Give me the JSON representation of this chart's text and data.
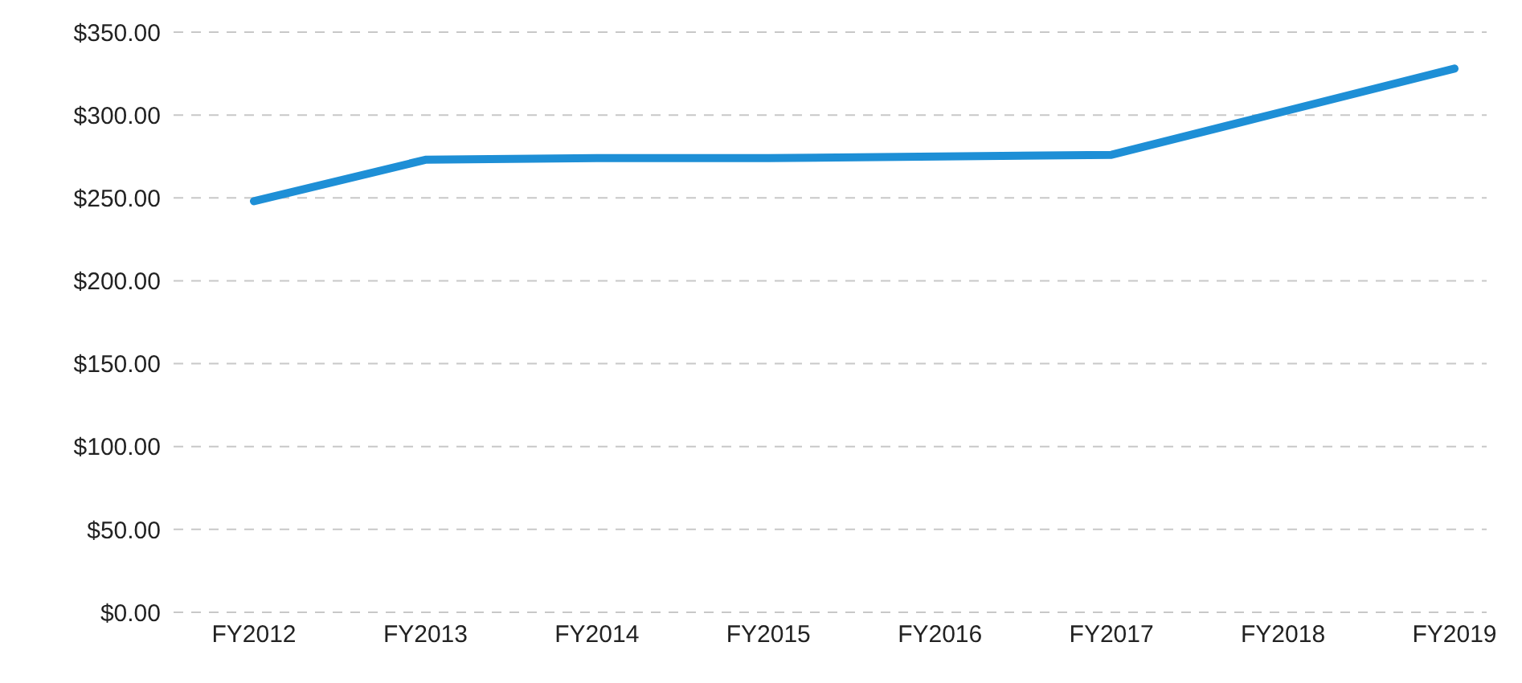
{
  "chart_data": {
    "type": "line",
    "categories": [
      "FY2012",
      "FY2013",
      "FY2014",
      "FY2015",
      "FY2016",
      "FY2017",
      "FY2018",
      "FY2019"
    ],
    "series": [
      {
        "color": "#1e8fd6",
        "values": [
          248,
          273,
          274,
          274,
          275,
          276,
          302,
          328
        ]
      }
    ],
    "ylim": [
      0,
      350
    ],
    "yticks": [
      {
        "value": 0,
        "label": "$0.00"
      },
      {
        "value": 50,
        "label": "$50.00"
      },
      {
        "value": 100,
        "label": "$100.00"
      },
      {
        "value": 150,
        "label": "$150.00"
      },
      {
        "value": 200,
        "label": "$200.00"
      },
      {
        "value": 250,
        "label": "$250.00"
      },
      {
        "value": 300,
        "label": "$300.00"
      },
      {
        "value": 350,
        "label": "$350.00"
      }
    ],
    "grid": "y",
    "marker": "none",
    "line_style": "solid",
    "legend": false
  }
}
